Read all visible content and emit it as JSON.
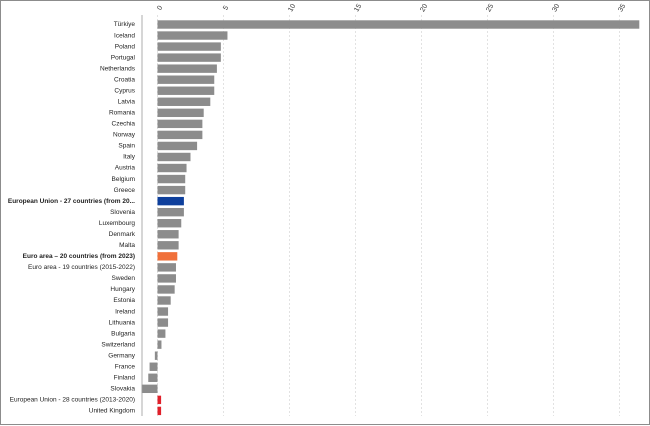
{
  "chart_data": {
    "type": "bar",
    "orientation": "horizontal",
    "title": "",
    "xlabel": "",
    "ylabel": "",
    "xlim": [
      -1.2,
      36.5
    ],
    "xticks": [
      0,
      5,
      10,
      15,
      20,
      25,
      30,
      35
    ],
    "xtick_labels": [
      "0",
      "5",
      "10",
      "15",
      "20",
      "25",
      "30",
      "35"
    ],
    "x_axis_position": "top",
    "grid": true,
    "legend": "none",
    "colors": {
      "default": "#8c8c8c",
      "eu27": "#0e3f9c",
      "ea20": "#f0703a",
      "highlight_red": "#e0202a"
    },
    "categories": [
      "Türkiye",
      "Iceland",
      "Poland",
      "Portugal",
      "Netherlands",
      "Croatia",
      "Cyprus",
      "Latvia",
      "Romania",
      "Czechia",
      "Norway",
      "Spain",
      "Italy",
      "Austria",
      "Belgium",
      "Greece",
      "European Union - 27 countries (from 20...",
      "Slovenia",
      "Luxembourg",
      "Denmark",
      "Malta",
      "Euro area – 20 countries (from 2023)",
      "Euro area - 19 countries  (2015-2022)",
      "Sweden",
      "Hungary",
      "Estonia",
      "Ireland",
      "Lithuania",
      "Bulgaria",
      "Switzerland",
      "Germany",
      "France",
      "Finland",
      "Slovakia",
      "European Union - 28 countries (2013-2020)",
      "United Kingdom"
    ],
    "values": [
      36.5,
      5.3,
      4.8,
      4.8,
      4.5,
      4.3,
      4.3,
      4.0,
      3.5,
      3.4,
      3.4,
      3.0,
      2.5,
      2.2,
      2.1,
      2.1,
      2.0,
      2.0,
      1.8,
      1.6,
      1.6,
      1.5,
      1.4,
      1.4,
      1.3,
      1.0,
      0.8,
      0.8,
      0.6,
      0.3,
      -0.2,
      -0.6,
      -0.7,
      -1.2,
      0.3,
      0.3
    ],
    "bar_colors": [
      "default",
      "default",
      "default",
      "default",
      "default",
      "default",
      "default",
      "default",
      "default",
      "default",
      "default",
      "default",
      "default",
      "default",
      "default",
      "default",
      "eu27",
      "default",
      "default",
      "default",
      "default",
      "ea20",
      "default",
      "default",
      "default",
      "default",
      "default",
      "default",
      "default",
      "default",
      "default",
      "default",
      "default",
      "default",
      "highlight_red",
      "highlight_red"
    ],
    "bold_labels": [
      "European Union - 27 countries (from 20...",
      "Euro area – 20 countries (from 2023)"
    ]
  }
}
